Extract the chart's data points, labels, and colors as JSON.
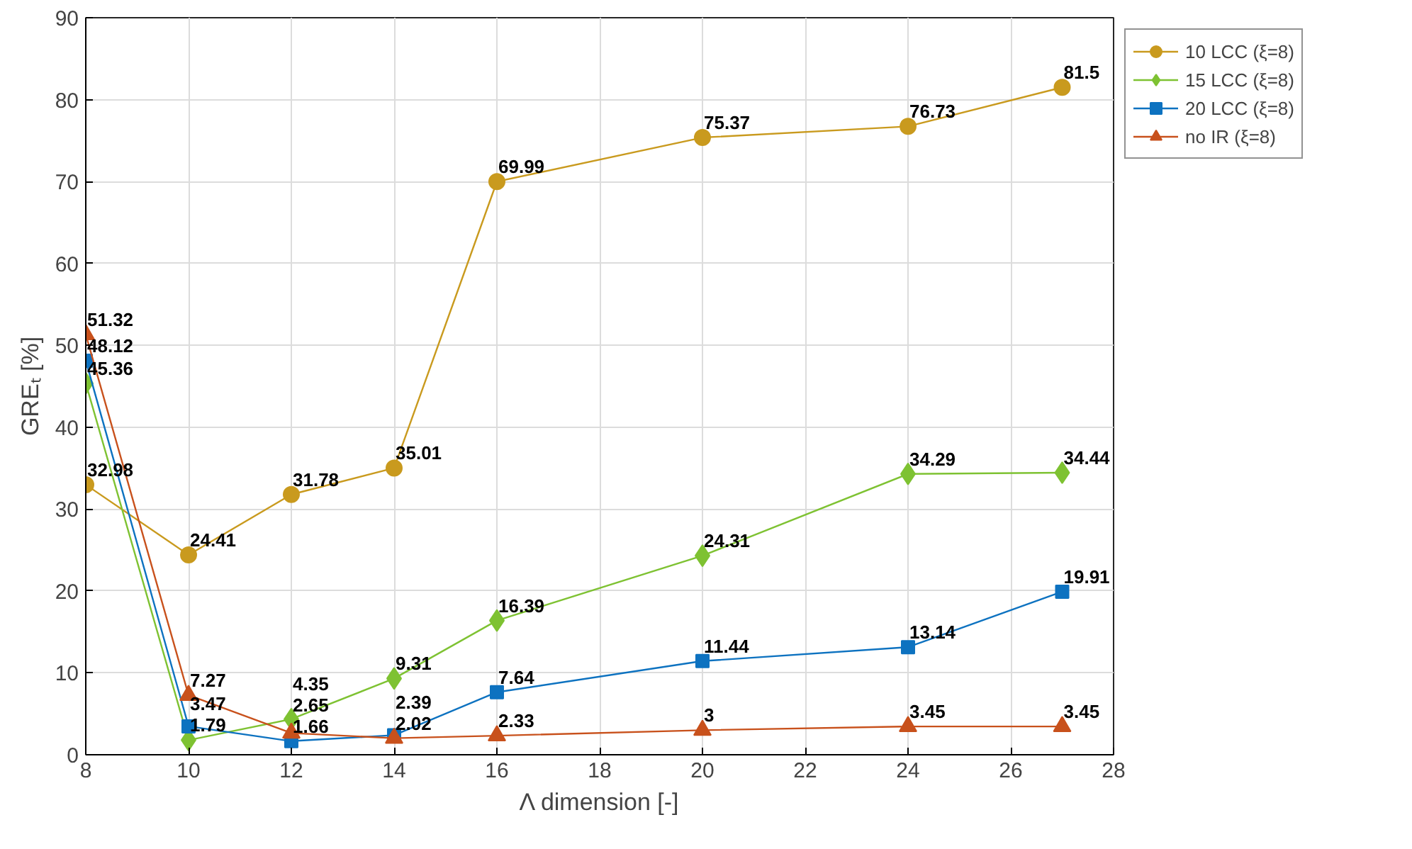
{
  "chart_data": {
    "type": "line",
    "xlabel": "Λ dimension [-]",
    "ylabel": "GREₜ [%]",
    "x": [
      8,
      10,
      12,
      14,
      16,
      20,
      24,
      27
    ],
    "series": [
      {
        "name": "10 LCC (ξ=8)",
        "color": "#c99a1e",
        "marker": "circle",
        "values": [
          32.98,
          24.41,
          31.78,
          35.01,
          69.99,
          75.37,
          76.73,
          81.5
        ]
      },
      {
        "name": "15 LCC (ξ=8)",
        "color": "#7ec232",
        "marker": "diamond",
        "values": [
          45.36,
          1.79,
          4.35,
          9.31,
          16.39,
          24.31,
          34.29,
          34.44
        ]
      },
      {
        "name": "20 LCC (ξ=8)",
        "color": "#0d72c0",
        "marker": "square",
        "values": [
          48.12,
          3.47,
          1.66,
          2.39,
          7.64,
          11.44,
          13.14,
          19.91
        ]
      },
      {
        "name": "no IR (ξ=8)",
        "color": "#c8511c",
        "marker": "triangle",
        "values": [
          51.32,
          7.27,
          2.65,
          2.02,
          2.33,
          3,
          3.45,
          3.45
        ]
      }
    ],
    "xlim": [
      8,
      28
    ],
    "xticks": [
      8,
      10,
      12,
      14,
      16,
      18,
      20,
      22,
      24,
      26,
      28
    ],
    "ylim": [
      0,
      90
    ],
    "yticks": [
      0,
      10,
      20,
      30,
      40,
      50,
      60,
      70,
      80,
      90
    ],
    "grid": true,
    "legend": "top right",
    "data_labels": true
  }
}
